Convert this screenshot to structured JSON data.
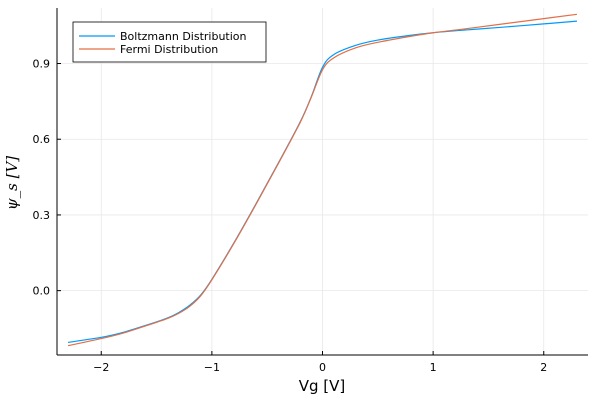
{
  "chart_data": {
    "type": "line",
    "title": "",
    "xlabel": "Vg [V]",
    "ylabel": "ψ_s [V]",
    "xlim": [
      -2.4,
      2.4
    ],
    "ylim": [
      -0.255,
      1.12
    ],
    "x_ticks": [
      -2,
      -1,
      0,
      1,
      2
    ],
    "x_tick_labels": [
      "−2",
      "−1",
      "0",
      "1",
      "2"
    ],
    "y_ticks": [
      0.0,
      0.3,
      0.6,
      0.9
    ],
    "y_tick_labels": [
      "0.0",
      "0.3",
      "0.6",
      "0.9"
    ],
    "grid": true,
    "legend_position": "top-left",
    "series": [
      {
        "name": "Boltzmann Distribution",
        "color": "#009AFA",
        "x": [
          -2.3,
          -2.0,
          -1.8,
          -1.6,
          -1.4,
          -1.3,
          -1.2,
          -1.1,
          -1.0,
          -0.8,
          -0.6,
          -0.4,
          -0.2,
          -0.1,
          0.0,
          0.1,
          0.3,
          0.5,
          0.8,
          1.0,
          1.3,
          1.6,
          2.0,
          2.3
        ],
        "values": [
          -0.205,
          -0.185,
          -0.165,
          -0.138,
          -0.108,
          -0.087,
          -0.058,
          -0.017,
          0.045,
          0.19,
          0.345,
          0.505,
          0.67,
          0.77,
          0.885,
          0.935,
          0.972,
          0.993,
          1.012,
          1.022,
          1.033,
          1.043,
          1.057,
          1.068
        ]
      },
      {
        "name": "Fermi Distribution",
        "color": "#E26F46",
        "x": [
          -2.3,
          -2.0,
          -1.8,
          -1.6,
          -1.4,
          -1.3,
          -1.2,
          -1.1,
          -1.0,
          -0.8,
          -0.6,
          -0.4,
          -0.2,
          -0.1,
          0.0,
          0.1,
          0.3,
          0.5,
          0.8,
          1.0,
          1.3,
          1.6,
          2.0,
          2.3
        ],
        "values": [
          -0.218,
          -0.19,
          -0.168,
          -0.14,
          -0.11,
          -0.09,
          -0.062,
          -0.02,
          0.043,
          0.188,
          0.343,
          0.503,
          0.668,
          0.768,
          0.875,
          0.922,
          0.962,
          0.984,
          1.008,
          1.022,
          1.038,
          1.055,
          1.078,
          1.095
        ]
      }
    ]
  }
}
